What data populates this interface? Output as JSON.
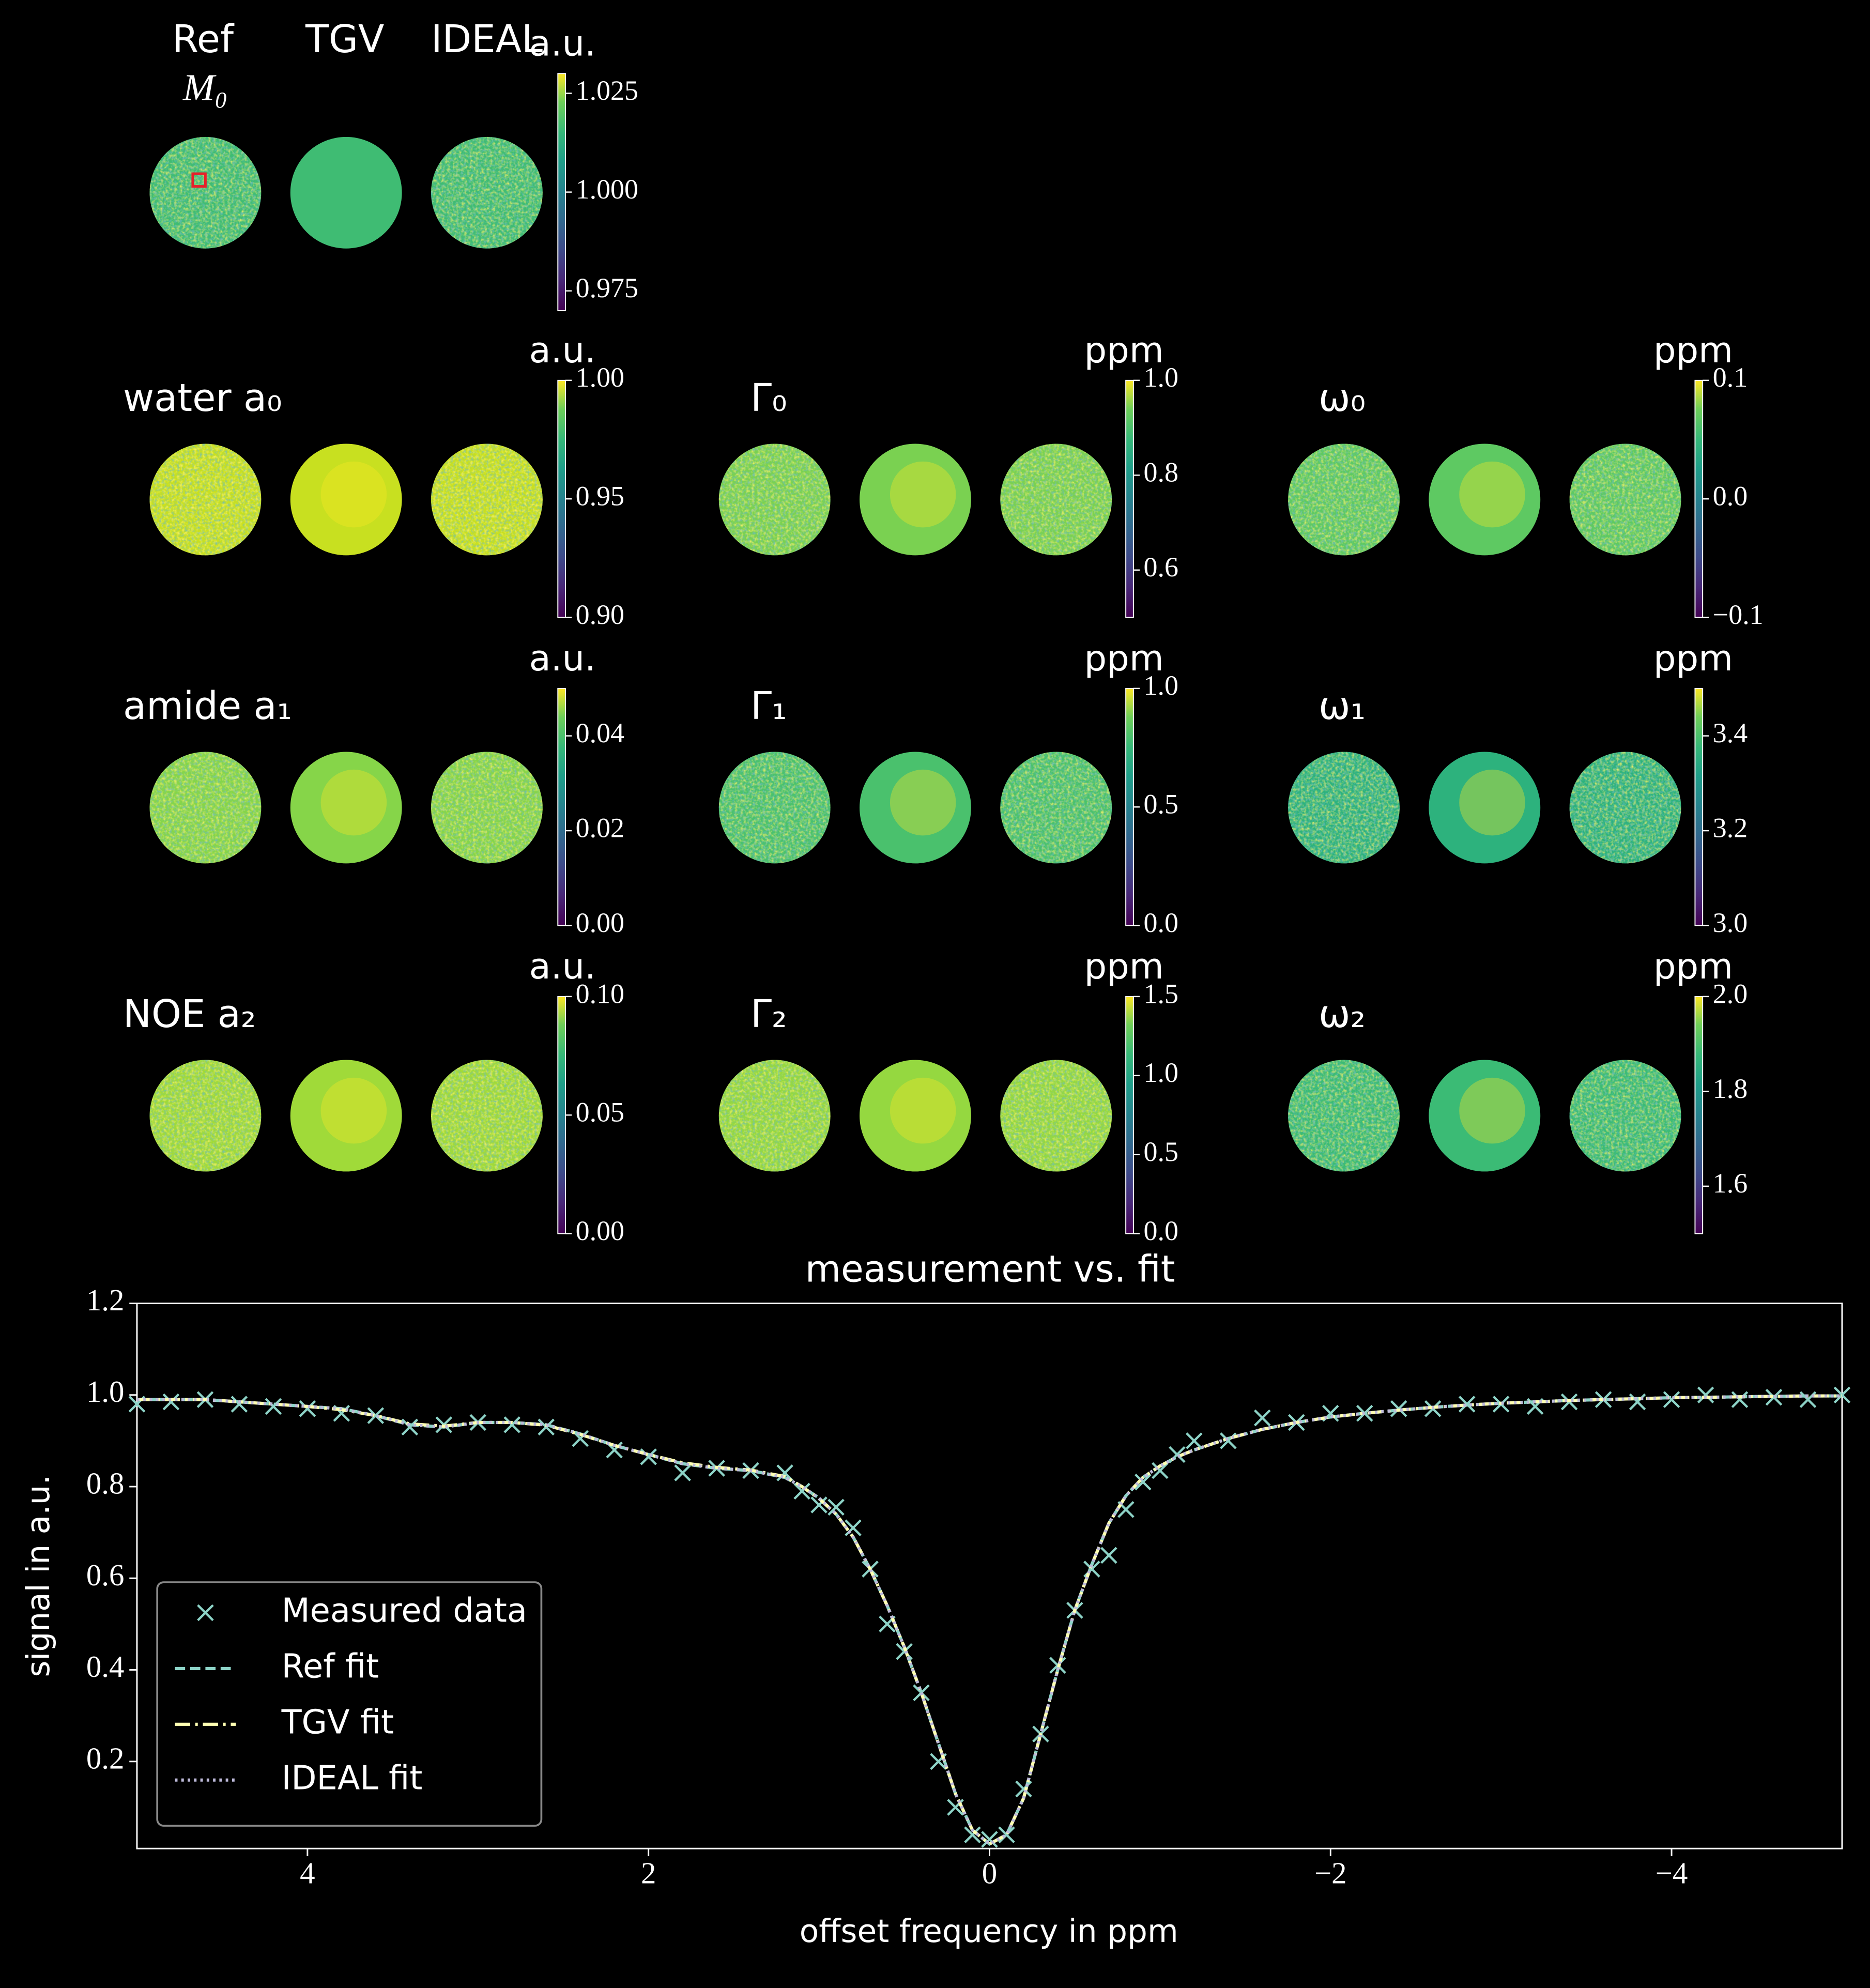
{
  "column_headers": [
    "Ref",
    "TGV",
    "IDEAL"
  ],
  "maps": [
    {
      "title": "M₀",
      "unit": "a.u.",
      "clim": [
        0.97,
        1.03
      ],
      "ticks": [
        0.975,
        {
          "value": 1,
          "label": "1.000"
        },
        1.025
      ]
    },
    {
      "title": "water a₀",
      "unit": "a.u.",
      "clim": [
        0.9,
        1.0
      ],
      "ticks": [
        {
          "value": 0.9,
          "label": "0.90"
        },
        0.95,
        {
          "value": 1,
          "label": "1.00"
        }
      ]
    },
    {
      "title": "Γ₀",
      "unit": "ppm",
      "clim": [
        0.5,
        1.0
      ],
      "ticks": [
        0.6,
        0.8,
        {
          "value": 1,
          "label": "1.0"
        }
      ]
    },
    {
      "title": "ω₀",
      "unit": "ppm",
      "clim": [
        -0.1,
        0.1
      ],
      "ticks": [
        {
          "value": -0.1,
          "label": "−0.1"
        },
        {
          "value": 0,
          "label": "0.0"
        },
        0.1
      ]
    },
    {
      "title": "amide a₁",
      "unit": "a.u.",
      "clim": [
        0,
        0.05
      ],
      "ticks": [
        {
          "value": 0,
          "label": "0.00"
        },
        0.02,
        0.04
      ]
    },
    {
      "title": "Γ₁",
      "unit": "ppm",
      "clim": [
        0,
        1.0
      ],
      "ticks": [
        {
          "value": 0,
          "label": "0.0"
        },
        0.5,
        {
          "value": 1,
          "label": "1.0"
        }
      ]
    },
    {
      "title": "ω₁",
      "unit": "ppm",
      "clim": [
        3.0,
        3.5
      ],
      "ticks": [
        {
          "value": 3,
          "label": "3.0"
        },
        3.2,
        3.4
      ]
    },
    {
      "title": "NOE a₂",
      "unit": "a.u.",
      "clim": [
        0,
        0.1
      ],
      "ticks": [
        {
          "value": 0,
          "label": "0.00"
        },
        0.05,
        {
          "value": 0.1,
          "label": "0.10"
        }
      ]
    },
    {
      "title": "Γ₂",
      "unit": "ppm",
      "clim": [
        0,
        1.5
      ],
      "ticks": [
        {
          "value": 0,
          "label": "0.0"
        },
        0.5,
        {
          "value": 1,
          "label": "1.0"
        },
        1.5
      ]
    },
    {
      "title": "ω₂",
      "unit": "ppm",
      "clim": [
        1.5,
        2.0
      ],
      "ticks": [
        1.6,
        1.8,
        {
          "value": 2,
          "label": "2.0"
        }
      ]
    }
  ],
  "chart_data": {
    "type": "line",
    "title": "measurement vs. fit",
    "xlabel": "offset frequency in ppm",
    "ylabel": "signal in a.u.",
    "xlim": [
      5,
      -5
    ],
    "ylim": [
      0.01,
      1.2
    ],
    "xticks": [
      4,
      2,
      0,
      {
        "value": -2,
        "label": "−2"
      },
      {
        "value": -4,
        "label": "−4"
      }
    ],
    "yticks": [
      0.2,
      0.4,
      0.6,
      0.8,
      {
        "value": 1,
        "label": "1.0"
      },
      1.2
    ],
    "legend": "lower left",
    "x": [
      5,
      4.8,
      4.6,
      4.4,
      4.2,
      4,
      3.8,
      3.6,
      3.4,
      3.2,
      3,
      2.8,
      2.6,
      2.4,
      2.2,
      2,
      1.8,
      1.6,
      1.4,
      1.2,
      1.1,
      1,
      0.9,
      0.8,
      0.7,
      0.6,
      0.5,
      0.4,
      0.3,
      0.2,
      0.1,
      0,
      -0.1,
      -0.2,
      -0.3,
      -0.4,
      -0.5,
      -0.6,
      -0.7,
      -0.8,
      -0.9,
      -1,
      -1.1,
      -1.2,
      -1.4,
      -1.6,
      -1.8,
      -2,
      -2.2,
      -2.4,
      -2.6,
      -2.8,
      -3,
      -3.2,
      -3.4,
      -3.6,
      -3.8,
      -4,
      -4.2,
      -4.4,
      -4.6,
      -4.8,
      -5
    ],
    "series": [
      {
        "name": "Measured data",
        "color": "#8dd3c7",
        "marker": "x",
        "values": [
          0.98,
          0.985,
          0.99,
          0.98,
          0.975,
          0.97,
          0.96,
          0.955,
          0.93,
          0.935,
          0.94,
          0.935,
          0.93,
          0.905,
          0.88,
          0.865,
          0.83,
          0.84,
          0.835,
          0.83,
          0.79,
          0.76,
          0.755,
          0.71,
          0.62,
          0.5,
          0.44,
          0.35,
          0.2,
          0.1,
          0.04,
          0.03,
          0.04,
          0.14,
          0.26,
          0.41,
          0.53,
          0.62,
          0.65,
          0.75,
          0.81,
          0.835,
          0.87,
          0.9,
          0.9,
          0.95,
          0.94,
          0.96,
          0.96,
          0.97,
          0.97,
          0.98,
          0.98,
          0.975,
          0.985,
          0.99,
          0.985,
          0.99,
          1.0,
          0.99,
          0.995,
          0.99,
          1.0
        ]
      },
      {
        "name": "Ref fit",
        "color": "#8dd3c7",
        "linestyle": "dashed",
        "values": [
          0.99,
          0.99,
          0.99,
          0.985,
          0.98,
          0.975,
          0.97,
          0.955,
          0.935,
          0.93,
          0.94,
          0.94,
          0.935,
          0.915,
          0.89,
          0.87,
          0.85,
          0.84,
          0.835,
          0.82,
          0.8,
          0.775,
          0.74,
          0.69,
          0.62,
          0.54,
          0.45,
          0.35,
          0.24,
          0.13,
          0.05,
          0.02,
          0.04,
          0.12,
          0.26,
          0.4,
          0.53,
          0.63,
          0.72,
          0.78,
          0.82,
          0.845,
          0.865,
          0.88,
          0.905,
          0.925,
          0.94,
          0.952,
          0.96,
          0.967,
          0.973,
          0.978,
          0.982,
          0.985,
          0.988,
          0.99,
          0.992,
          0.994,
          0.995,
          0.996,
          0.997,
          0.998,
          0.998
        ]
      },
      {
        "name": "TGV fit",
        "color": "#ffffb3",
        "linestyle": "dashdot",
        "values": [
          0.99,
          0.99,
          0.99,
          0.985,
          0.98,
          0.975,
          0.968,
          0.955,
          0.937,
          0.932,
          0.94,
          0.94,
          0.934,
          0.914,
          0.89,
          0.87,
          0.852,
          0.842,
          0.836,
          0.822,
          0.8,
          0.774,
          0.74,
          0.69,
          0.62,
          0.54,
          0.45,
          0.35,
          0.24,
          0.13,
          0.05,
          0.02,
          0.04,
          0.12,
          0.26,
          0.4,
          0.53,
          0.63,
          0.72,
          0.78,
          0.82,
          0.845,
          0.865,
          0.88,
          0.905,
          0.925,
          0.94,
          0.952,
          0.96,
          0.967,
          0.973,
          0.978,
          0.982,
          0.985,
          0.988,
          0.99,
          0.992,
          0.994,
          0.995,
          0.996,
          0.997,
          0.998,
          0.998
        ]
      },
      {
        "name": "IDEAL fit",
        "color": "#bebada",
        "linestyle": "dotted",
        "values": [
          0.99,
          0.99,
          0.99,
          0.985,
          0.98,
          0.975,
          0.97,
          0.955,
          0.935,
          0.93,
          0.94,
          0.94,
          0.935,
          0.915,
          0.89,
          0.87,
          0.85,
          0.84,
          0.835,
          0.82,
          0.8,
          0.775,
          0.74,
          0.69,
          0.62,
          0.54,
          0.45,
          0.35,
          0.24,
          0.13,
          0.05,
          0.02,
          0.04,
          0.12,
          0.26,
          0.4,
          0.53,
          0.63,
          0.72,
          0.78,
          0.82,
          0.845,
          0.865,
          0.88,
          0.905,
          0.925,
          0.94,
          0.952,
          0.96,
          0.967,
          0.973,
          0.978,
          0.982,
          0.985,
          0.988,
          0.99,
          0.992,
          0.994,
          0.995,
          0.996,
          0.997,
          0.998,
          0.998
        ]
      }
    ]
  }
}
